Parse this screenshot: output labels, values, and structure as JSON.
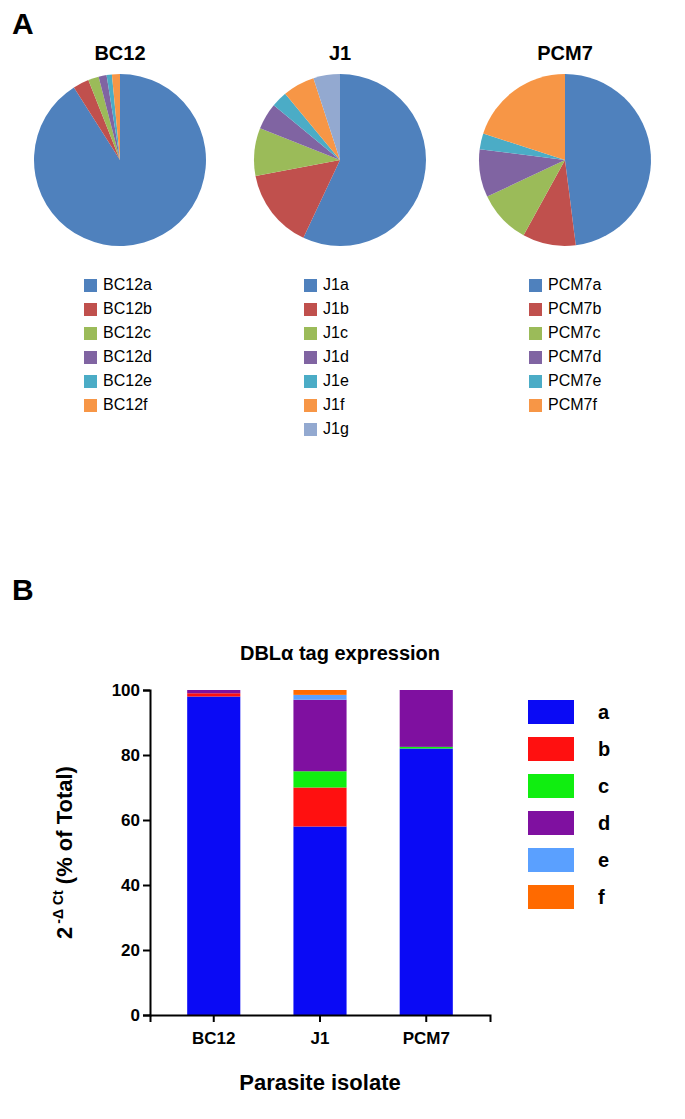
{
  "chart_data": [
    {
      "type": "pie",
      "panel_label": "A",
      "title": "BC12",
      "categories": [
        "BC12a",
        "BC12b",
        "BC12c",
        "BC12d",
        "BC12e",
        "BC12f"
      ],
      "values": [
        91,
        3,
        2,
        1.5,
        1,
        1.5
      ],
      "colors": [
        "#4f81bd",
        "#c0504d",
        "#9bbb59",
        "#8064a2",
        "#4bacc6",
        "#f79646"
      ]
    },
    {
      "type": "pie",
      "title": "J1",
      "categories": [
        "J1a",
        "J1b",
        "J1c",
        "J1d",
        "J1e",
        "J1f",
        "J1g"
      ],
      "values": [
        57,
        15,
        9,
        5,
        3,
        6,
        5
      ],
      "colors": [
        "#4f81bd",
        "#c0504d",
        "#9bbb59",
        "#8064a2",
        "#4bacc6",
        "#f79646",
        "#93a9d0"
      ]
    },
    {
      "type": "pie",
      "title": "PCM7",
      "categories": [
        "PCM7a",
        "PCM7b",
        "PCM7c",
        "PCM7d",
        "PCM7e",
        "PCM7f"
      ],
      "values": [
        48,
        10,
        10,
        9,
        3,
        20
      ],
      "colors": [
        "#4f81bd",
        "#c0504d",
        "#9bbb59",
        "#8064a2",
        "#4bacc6",
        "#f79646"
      ]
    },
    {
      "type": "bar",
      "panel_label": "B",
      "stacked": true,
      "legend": "right",
      "title": "DBLα tag expression",
      "ylabel_base": "2",
      "ylabel_exponent": "-Δ Ct",
      "ylabel_rest": " (% of Total)",
      "xlabel": "Parasite isolate",
      "categories": [
        "BC12",
        "J1",
        "PCM7"
      ],
      "series": [
        {
          "name": "a",
          "color": "#0a0af5",
          "values": [
            98,
            58,
            82
          ]
        },
        {
          "name": "b",
          "color": "#ff1010",
          "values": [
            1,
            12,
            0
          ]
        },
        {
          "name": "c",
          "color": "#10ee10",
          "values": [
            0,
            5,
            0.5
          ]
        },
        {
          "name": "d",
          "color": "#7f10a0",
          "values": [
            1,
            22,
            17.5
          ]
        },
        {
          "name": "e",
          "color": "#5aa0ff",
          "values": [
            0,
            1.5,
            0
          ]
        },
        {
          "name": "f",
          "color": "#ff6a00",
          "values": [
            0,
            1.5,
            0
          ]
        }
      ],
      "ylim": [
        0,
        100
      ],
      "yticks": [
        0,
        20,
        40,
        60,
        80,
        100
      ]
    }
  ]
}
